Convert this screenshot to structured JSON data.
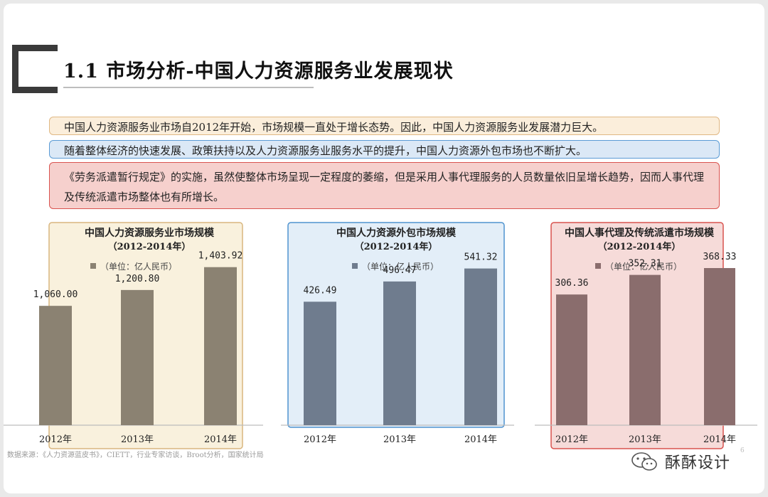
{
  "slide": {
    "title": "1.1 市场分析-中国人力资源服务业发展现状",
    "points": [
      "中国人力资源服务业市场自2012年开始，市场规模一直处于增长态势。因此，中国人力资源服务业发展潜力巨大。",
      "随着整体经济的快速发展、政策扶持以及人力资源服务业服务水平的提升，中国人力资源外包市场也不断扩大。",
      "《劳务派遣暂行规定》的实施，虽然使整体市场呈现一定程度的萎缩，但是采用人事代理服务的人员数量依旧呈增长趋势，因而人事代理及传统派遣市场整体也有所增长。"
    ],
    "footer": "数据来源：《人力资源蓝皮书》，CIETT，行业专家访谈，Broot分析，国家统计局",
    "page_number": "6",
    "brand": "酥酥设计",
    "colors": {
      "bar1": "#8b8272",
      "bar2": "#6f7c8e",
      "bar3": "#8a6d6d",
      "accent_orange": "#e0b884",
      "accent_blue": "#5b9bd5",
      "accent_red": "#d9534f"
    }
  },
  "chart_data": [
    {
      "type": "bar",
      "title": "中国人力资源服务业市场规模",
      "subtitle": "（2012-2014年）",
      "legend": "（单位：亿人民币）",
      "categories": [
        "2012年",
        "2013年",
        "2014年"
      ],
      "values": [
        1060.0,
        1200.8,
        1403.92
      ],
      "labels": [
        "1,060.00",
        "1,200.80",
        "1,403.92"
      ],
      "ylim": [
        0,
        1800
      ]
    },
    {
      "type": "bar",
      "title": "中国人力资源外包市场规模",
      "subtitle": "（2012-2014年）",
      "legend": "（单位：亿人民币）",
      "categories": [
        "2012年",
        "2013年",
        "2014年"
      ],
      "values": [
        426.49,
        496.47,
        541.32
      ],
      "labels": [
        "426.49",
        "496.47",
        "541.32"
      ],
      "ylim": [
        0,
        700
      ]
    },
    {
      "type": "bar",
      "title": "中国人事代理及传统派遣市场规模",
      "subtitle": "（2012-2014年）",
      "legend": "（单位：亿人民币）",
      "categories": [
        "2012年",
        "2013年",
        "2014年"
      ],
      "values": [
        306.36,
        352.31,
        368.33
      ],
      "labels": [
        "306.36",
        "352.31",
        "368.33"
      ],
      "ylim": [
        0,
        475
      ]
    }
  ]
}
